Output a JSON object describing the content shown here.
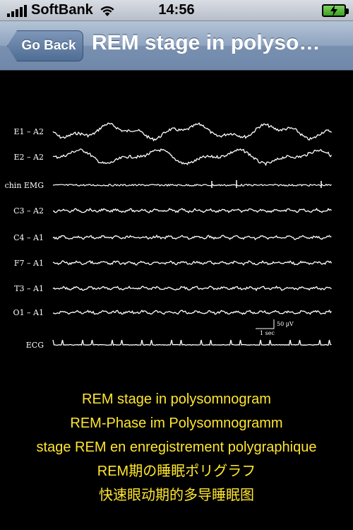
{
  "status_bar": {
    "carrier": "SoftBank",
    "time": "14:56",
    "wifi_icon": "wifi-icon",
    "battery_icon": "battery-charging-icon"
  },
  "nav": {
    "back_label": "Go Back",
    "title": "REM stage in polyso…"
  },
  "figure": {
    "channels": [
      {
        "label": "E1 – A2"
      },
      {
        "label": "E2 – A2"
      },
      {
        "label": "chin EMG"
      },
      {
        "label": "C3 – A2"
      },
      {
        "label": "C4 – A1"
      },
      {
        "label": "F7 – A1"
      },
      {
        "label": "T3 – A1"
      },
      {
        "label": "O1 – A1"
      },
      {
        "label": "ECG"
      }
    ],
    "scale_amplitude": "50 µV",
    "scale_time": "1 sec"
  },
  "caption": {
    "lines": [
      "REM stage in polysomnogram",
      "REM-Phase im Polysomnogramm",
      "stage REM en enregistrement polygraphique",
      "REM期の睡眠ポリグラフ",
      "快速眼动期的多导睡眠图"
    ]
  },
  "colors": {
    "caption_text": "#ffe62e",
    "background": "#000000",
    "trace": "#ffffff"
  }
}
